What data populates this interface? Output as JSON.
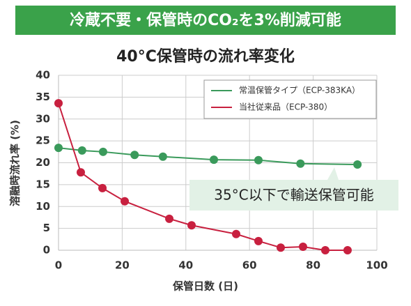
{
  "banner": "冷蔵不要・保管時のCO₂を3%削減可能",
  "chart_data": {
    "type": "line",
    "title": "40°C保管時の流れ率変化",
    "x_label": "保管日数 (日)",
    "y_label": "溶融時流れ率 (%)",
    "annotation": "35°C以下で輸送保管可能",
    "xlim": [
      0,
      100
    ],
    "xticks": [
      0,
      20,
      40,
      60,
      80,
      100
    ],
    "ylim": [
      0,
      40
    ],
    "yticks": [
      0,
      5,
      10,
      15,
      20,
      25,
      30,
      35,
      40
    ],
    "grid": true,
    "legend": "upper right",
    "series": [
      {
        "name": "常温保管タイプ（ECP-383KA）",
        "color": "#3a9a5b",
        "x": [
          0,
          7.4,
          14,
          23.9,
          32.8,
          48.8,
          62.8,
          76,
          93.9
        ],
        "values": [
          23.4,
          22.8,
          22.5,
          21.8,
          21.4,
          20.7,
          20.6,
          19.8,
          19.6
        ]
      },
      {
        "name": "当社従来品（ECP-380）",
        "color": "#c8203f",
        "x": [
          0,
          7,
          13.8,
          20.8,
          34.8,
          41.8,
          55.8,
          62.8,
          69.8,
          76.8,
          83.8,
          90.8
        ],
        "values": [
          33.6,
          17.8,
          14.2,
          11.2,
          7.2,
          5.7,
          3.7,
          2.1,
          0.6,
          0.8,
          0,
          0
        ]
      }
    ]
  }
}
